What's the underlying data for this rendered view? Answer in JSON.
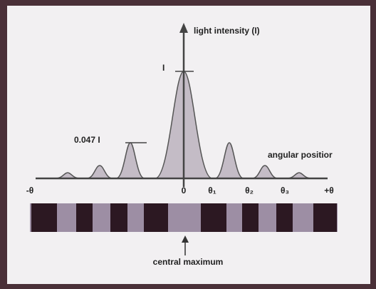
{
  "axis": {
    "y_label": "light intensity (I)",
    "x_label": "angular positior",
    "peak_label": "I",
    "side_peak_label": "0.047 I"
  },
  "positions": [
    "-θ",
    "0",
    "θ₁",
    "θ₂",
    "θ₃",
    "+θ"
  ],
  "central_label": "central maximum"
}
